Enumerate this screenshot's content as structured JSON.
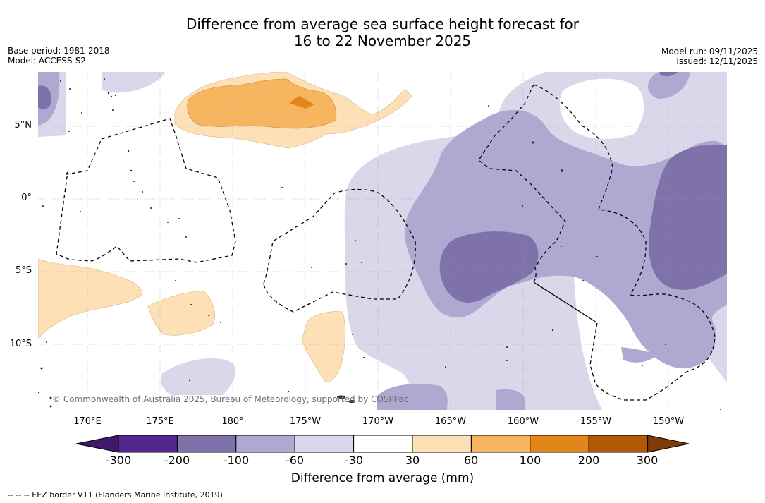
{
  "title": {
    "line1": "Difference from average sea surface height forecast for",
    "line2": "16 to 22 November 2025"
  },
  "meta": {
    "base_period": "Base period: 1981-2018",
    "model": "Model: ACCESS-S2",
    "model_run": "Model run: 09/11/2025",
    "issued": "Issued: 12/11/2025"
  },
  "map": {
    "lat_labels": [
      "5°N",
      "0°",
      "5°S",
      "10°S"
    ],
    "lon_labels": [
      "170°E",
      "175°E",
      "180°",
      "175°W",
      "170°W",
      "165°W",
      "160°W",
      "155°W",
      "150°W"
    ],
    "copyright": "© Commonwealth of Australia 2025, Bureau of Meteorology, supported by COSPPac"
  },
  "colorbar": {
    "label": "Difference from average (mm)",
    "ticks": [
      "-300",
      "-200",
      "-100",
      "-60",
      "-30",
      "30",
      "60",
      "100",
      "200",
      "300"
    ],
    "colors": [
      "#3f1a6b",
      "#54278f",
      "#7f72ab",
      "#aea9d0",
      "#d8d8ea",
      "#ffffff",
      "#fde0b6",
      "#f8b560",
      "#e2861b",
      "#b35807",
      "#7f3b08"
    ]
  },
  "footer": "-- -- -- EEZ border V11 (Flanders Marine Institute, 2019)."
}
